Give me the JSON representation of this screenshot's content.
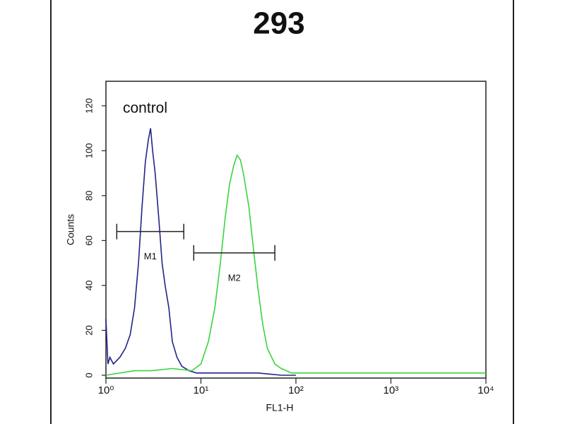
{
  "chart_data": {
    "type": "line",
    "title": "293",
    "x_label": "FL1-H",
    "y_label": "Counts",
    "x_scale": "log",
    "xlim": [
      1,
      10000
    ],
    "xticks": [
      {
        "value": 1,
        "label": "10⁰"
      },
      {
        "value": 10,
        "label": "10¹"
      },
      {
        "value": 100,
        "label": "10²"
      },
      {
        "value": 1000,
        "label": "10³"
      },
      {
        "value": 10000,
        "label": "10⁴"
      }
    ],
    "ylim": [
      0,
      130
    ],
    "yticks": [
      0,
      20,
      40,
      60,
      80,
      100,
      120
    ],
    "series": [
      {
        "name": "control",
        "color": "#23238a",
        "x": [
          1.0,
          1.05,
          1.1,
          1.2,
          1.4,
          1.6,
          1.8,
          2.0,
          2.2,
          2.4,
          2.6,
          2.8,
          2.95,
          3.1,
          3.3,
          3.6,
          3.9,
          4.2,
          4.6,
          5.0,
          5.6,
          6.3,
          7.5,
          9,
          12,
          20,
          40,
          70,
          100
        ],
        "values": [
          25,
          5,
          8,
          5,
          8,
          12,
          18,
          30,
          50,
          75,
          95,
          105,
          110,
          100,
          90,
          70,
          50,
          40,
          30,
          15,
          8,
          4,
          2,
          1,
          1,
          1,
          1,
          0,
          0
        ]
      },
      {
        "color": "#3ad43a",
        "x": [
          1,
          2,
          3,
          5,
          8,
          10,
          12,
          14,
          16,
          18,
          20,
          22,
          24,
          26,
          28,
          32,
          36,
          40,
          45,
          50,
          60,
          70,
          90,
          150,
          500,
          1000,
          5000,
          10000
        ],
        "values": [
          0,
          2,
          2,
          3,
          2,
          5,
          15,
          30,
          50,
          70,
          85,
          93,
          98,
          96,
          90,
          75,
          55,
          38,
          22,
          12,
          5,
          3,
          1,
          1,
          1,
          1,
          1,
          1
        ]
      }
    ],
    "gates": [
      {
        "label": "M1",
        "range": [
          1.3,
          6.6
        ],
        "y": 64
      },
      {
        "label": "M2",
        "range": [
          8.4,
          60
        ],
        "y": 54.5
      }
    ]
  }
}
